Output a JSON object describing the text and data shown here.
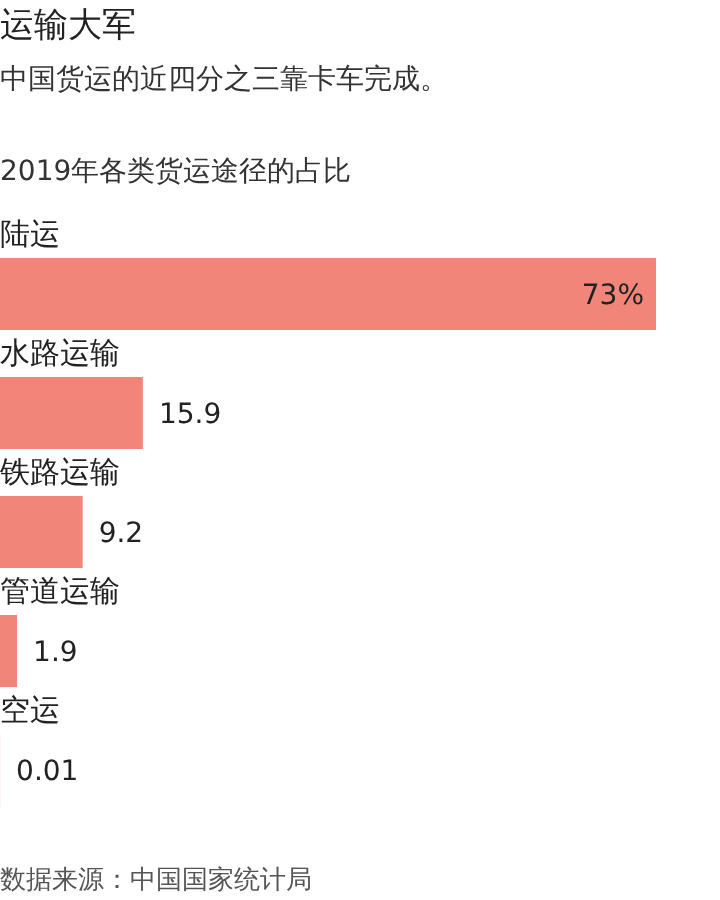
{
  "chart_data": {
    "type": "bar",
    "orientation": "horizontal",
    "title": "运输大军",
    "subtitle": "中国货运的近四分之三靠卡车完成。",
    "annotations": [
      "2019年各类货运途径的占比",
      "数据来源：中国国家统计局"
    ],
    "categories": [
      "陆运",
      "水路运输",
      "铁路运输",
      "管道运输",
      "空运"
    ],
    "values": [
      73,
      15.9,
      9.2,
      1.9,
      0.01
    ],
    "value_labels": [
      "73%",
      "15.9",
      "9.2",
      "1.9",
      "0.01"
    ],
    "color": "#f2857a"
  }
}
